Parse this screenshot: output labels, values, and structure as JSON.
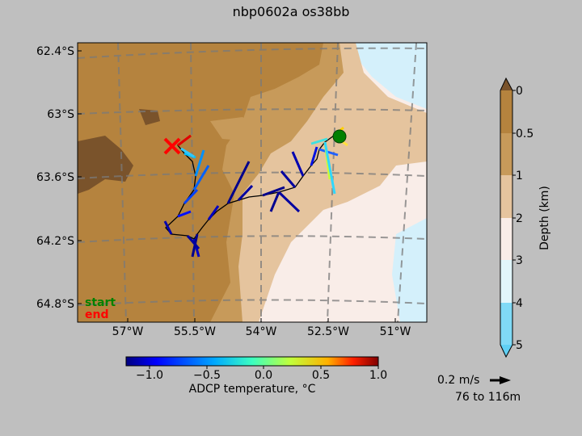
{
  "title": "nbp0602a os38bb",
  "map": {
    "lat_ticks": [
      "62.4°S",
      "63°S",
      "63.6°S",
      "64.2°S",
      "64.8°S"
    ],
    "lon_ticks": [
      "57°W",
      "55.5°W",
      "54°W",
      "52.5°W",
      "51°W"
    ],
    "legend": {
      "start": "start",
      "end": "end"
    },
    "start_marker_color": "#008000",
    "end_marker_color": "#ff0000",
    "track_color": "#000000"
  },
  "temperature_colorbar": {
    "label": "ADCP temperature, °C",
    "ticks": [
      "−1.0",
      "−0.5",
      "0.0",
      "0.5",
      "1.0"
    ],
    "range": [
      -1.2,
      1.0
    ],
    "colormap": "jet"
  },
  "depth_colorbar": {
    "label": "Depth (km)",
    "ticks": [
      "0",
      "0.5",
      "1",
      "2",
      "3",
      "4",
      "5"
    ],
    "colors": [
      "#b5833e",
      "#c79a5a",
      "#e5c49e",
      "#f9ede8",
      "#e2f6fb",
      "#80daf6"
    ]
  },
  "vector_scale": {
    "speed_label": "0.2 m/s",
    "depth_range": "76 to 116m"
  }
}
